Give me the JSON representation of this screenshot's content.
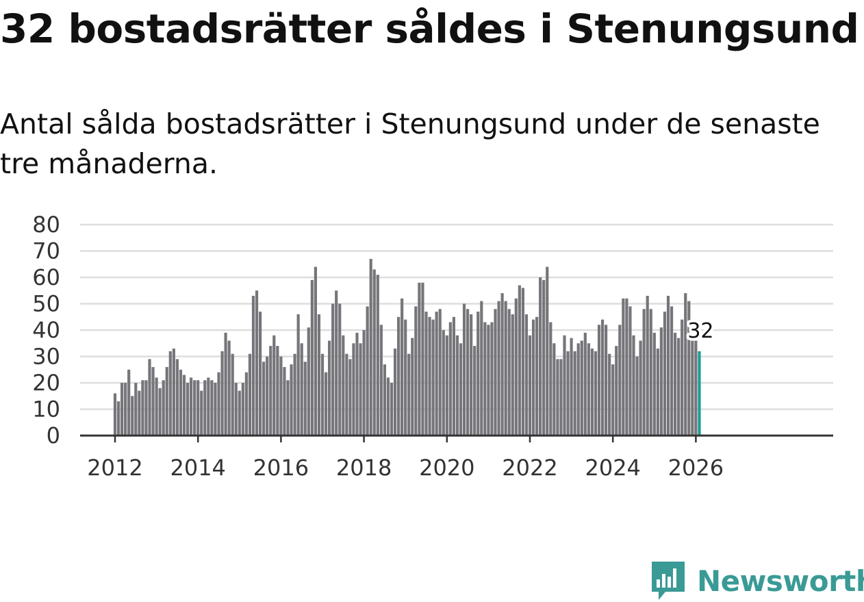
{
  "header": {
    "title": "32 bostadsrätter såldes i Stenungsund",
    "subtitle": "Antal sålda bostadsrätter i Stenungsund under de senaste tre månaderna."
  },
  "brand": {
    "name": "Newsworthy",
    "icon": "newsworthy-logo-icon"
  },
  "colors": {
    "bar": "#76757a",
    "highlight": "#1a9e96",
    "grid": "#dddddd",
    "axis": "#333333",
    "brand": "#3a9a95"
  },
  "chart_data": {
    "type": "bar",
    "title": "",
    "xlabel": "",
    "ylabel": "",
    "ylim": [
      0,
      80
    ],
    "yticks": [
      "0",
      "10",
      "20",
      "30",
      "40",
      "50",
      "60",
      "70",
      "80"
    ],
    "xticks": [
      "2012",
      "2014",
      "2016",
      "2018",
      "2020",
      "2022",
      "2024",
      "2026"
    ],
    "start": "2012-01",
    "end": "2026-02",
    "highlight_label": "32",
    "values": [
      16,
      13,
      20,
      20,
      25,
      15,
      20,
      17,
      21,
      21,
      29,
      26,
      22,
      18,
      21,
      26,
      32,
      33,
      29,
      25,
      23,
      20,
      22,
      21,
      21,
      17,
      21,
      22,
      21,
      20,
      24,
      32,
      39,
      36,
      31,
      20,
      17,
      20,
      24,
      31,
      53,
      55,
      47,
      28,
      30,
      34,
      38,
      34,
      30,
      26,
      21,
      27,
      31,
      46,
      35,
      28,
      41,
      59,
      64,
      46,
      31,
      24,
      36,
      50,
      55,
      50,
      38,
      31,
      29,
      35,
      39,
      35,
      40,
      49,
      67,
      63,
      61,
      42,
      27,
      22,
      20,
      33,
      45,
      52,
      44,
      31,
      37,
      49,
      58,
      58,
      47,
      45,
      44,
      47,
      48,
      40,
      38,
      43,
      45,
      38,
      35,
      50,
      48,
      46,
      34,
      47,
      51,
      43,
      42,
      43,
      48,
      51,
      54,
      51,
      48,
      46,
      52,
      57,
      56,
      46,
      38,
      44,
      45,
      60,
      59,
      64,
      43,
      35,
      29,
      29,
      38,
      32,
      37,
      32,
      35,
      36,
      39,
      35,
      33,
      32,
      42,
      44,
      42,
      31,
      27,
      34,
      42,
      52,
      52,
      49,
      38,
      30,
      36,
      48,
      53,
      48,
      39,
      33,
      41,
      47,
      53,
      49,
      39,
      37,
      44,
      54,
      51,
      36,
      36,
      32
    ]
  }
}
